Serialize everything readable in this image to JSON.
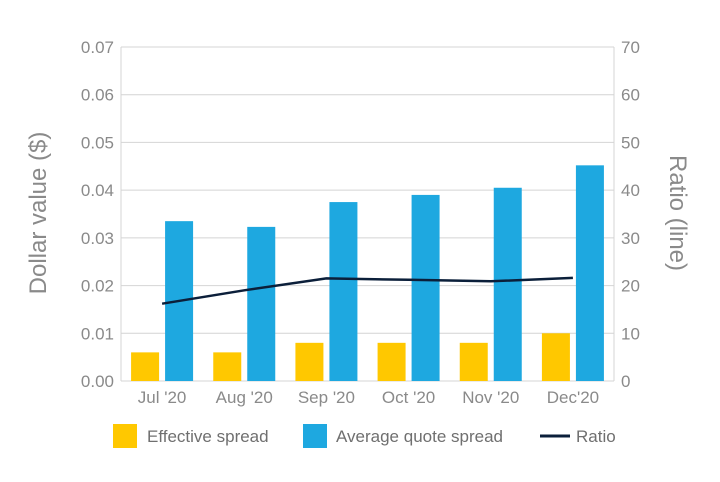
{
  "chart_data": {
    "type": "bar",
    "categories": [
      "Jul '20",
      "Aug '20",
      "Sep '20",
      "Oct '20",
      "Nov '20",
      "Dec'20"
    ],
    "series": [
      {
        "name": "Effective spread",
        "kind": "bar",
        "axis": "left",
        "color": "#ffc800",
        "values": [
          0.006,
          0.006,
          0.008,
          0.008,
          0.008,
          0.01
        ]
      },
      {
        "name": "Average quote spread",
        "kind": "bar",
        "axis": "left",
        "color": "#1ea8e0",
        "values": [
          0.0335,
          0.0323,
          0.0375,
          0.039,
          0.0405,
          0.0452
        ]
      },
      {
        "name": "Ratio",
        "kind": "line",
        "axis": "right",
        "color": "#0b1f3a",
        "values": [
          16.2,
          19.0,
          21.5,
          21.2,
          20.9,
          21.6
        ]
      }
    ],
    "ylabel": "Dollar value ($)",
    "y2label": "Ratio (line)",
    "ylim": [
      0,
      0.07
    ],
    "y2lim": [
      0,
      70
    ],
    "yticks": [
      "0.00",
      "0.01",
      "0.02",
      "0.03",
      "0.04",
      "0.05",
      "0.06",
      "0.07"
    ],
    "y2ticks": [
      "0",
      "10",
      "20",
      "30",
      "40",
      "50",
      "60",
      "70"
    ],
    "grid": true,
    "legend_position": "bottom"
  }
}
